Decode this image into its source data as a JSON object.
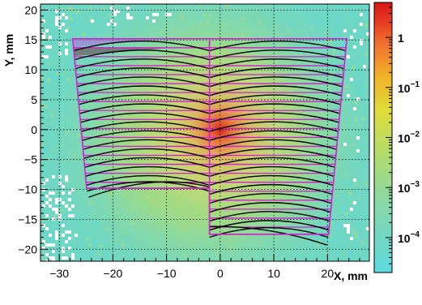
{
  "chart_data": {
    "type": "heatmap",
    "xlabel": "X, mm",
    "ylabel": "Y, mm",
    "xlim": [
      -33.5,
      27.8
    ],
    "ylim": [
      -22,
      21
    ],
    "x_ticks": [
      -30,
      -20,
      -10,
      0,
      10,
      20
    ],
    "y_ticks": [
      -20,
      -15,
      -10,
      -5,
      0,
      5,
      10,
      15,
      20
    ],
    "grid": true,
    "hotspot": {
      "x": 0,
      "y": 0
    },
    "colorbar": {
      "scale": "log",
      "range": [
        2e-05,
        5
      ],
      "ticks": [
        {
          "value": 1,
          "label": "1"
        },
        {
          "value": 0.1,
          "label": "10",
          "exp": "-1"
        },
        {
          "value": 0.01,
          "label": "10",
          "exp": "-2"
        },
        {
          "value": 0.001,
          "label": "10",
          "exp": "-3"
        },
        {
          "value": 0.0001,
          "label": "10",
          "exp": "-4"
        }
      ],
      "colors": [
        "#5ed8e0",
        "#7fd8a8",
        "#b0dc6c",
        "#e2dc3c",
        "#f0b428",
        "#f07830",
        "#e83c24",
        "#d81818"
      ]
    },
    "overlay": {
      "magenta_outline": [
        [
          -27.5,
          15.2
        ],
        [
          -2,
          15.2
        ],
        [
          -2,
          15.2
        ],
        [
          23.6,
          15.2
        ],
        [
          20.2,
          -17.5
        ],
        [
          -2,
          -17.5
        ],
        [
          -2,
          -9.8
        ],
        [
          -24.9,
          -9.8
        ]
      ],
      "divider_x": -2,
      "left_module": {
        "x_outer_top": -27.5,
        "x_outer_bottom": -24.9,
        "y_rows": [
          15.2,
          13.7,
          12.2,
          10.7,
          9.2,
          7.7,
          6.2,
          4.7,
          3.2,
          1.7,
          0.2,
          -1.3,
          -2.8,
          -4.3,
          -5.8,
          -7.3,
          -8.8,
          -9.8
        ]
      },
      "right_module": {
        "x_outer_top": 23.6,
        "x_outer_bottom": 20.2,
        "y_rows": [
          15.2,
          13.7,
          12.2,
          10.7,
          9.2,
          7.7,
          6.2,
          4.7,
          3.2,
          1.7,
          0.2,
          -1.3,
          -2.8,
          -4.3,
          -5.8,
          -7.3,
          -8.8,
          -10.3,
          -11.8,
          -13.3,
          -14.8,
          -16.3,
          -17.5
        ]
      },
      "strip_sag_mm": 1.6
    }
  }
}
